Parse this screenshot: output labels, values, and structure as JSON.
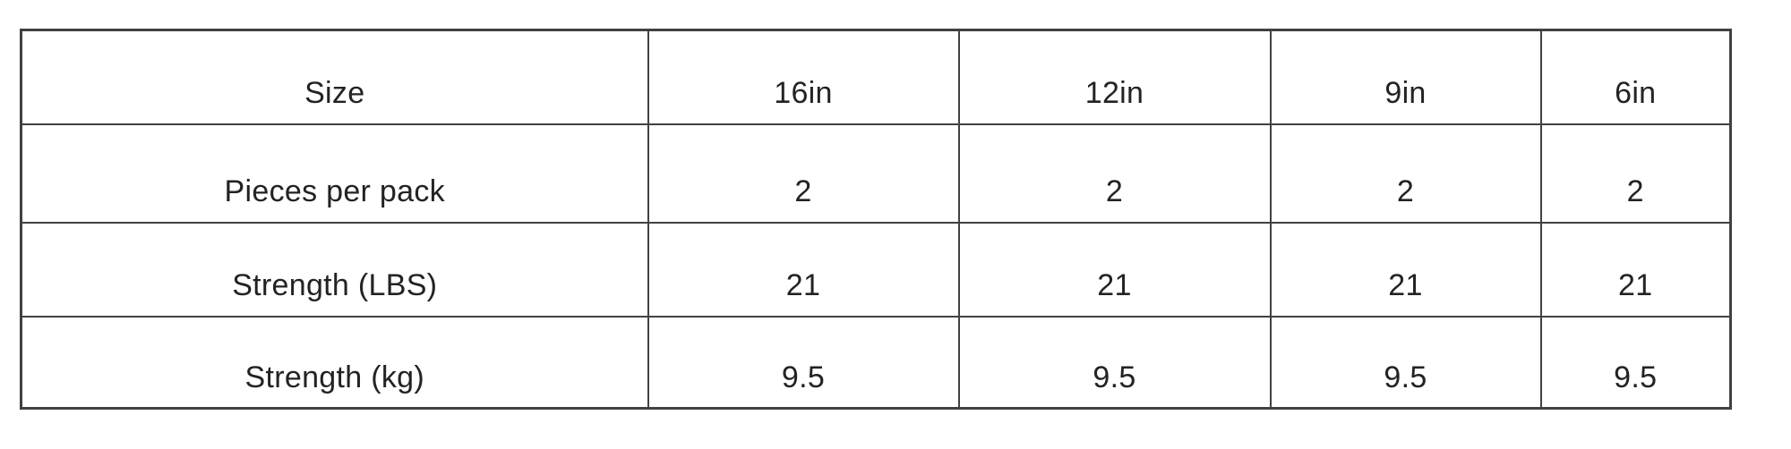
{
  "table": {
    "header_row": [
      "Size",
      "16in",
      "12in",
      "9in",
      "6in"
    ],
    "rows": [
      [
        "Pieces per pack",
        "2",
        "2",
        "2",
        "2"
      ],
      [
        "Strength (LBS)",
        "21",
        "21",
        "21",
        "21"
      ],
      [
        "Strength (kg)",
        "9.5",
        "9.5",
        "9.5",
        "9.5"
      ]
    ]
  },
  "colors": {
    "border": "#414141",
    "text": "#232323",
    "background": "#ffffff"
  }
}
